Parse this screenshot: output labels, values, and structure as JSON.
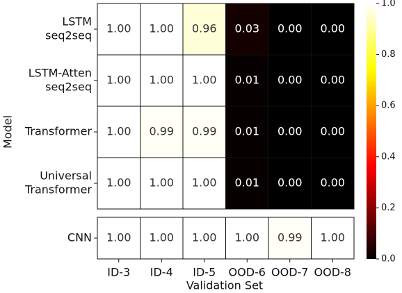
{
  "chart_data": {
    "type": "heatmap",
    "colormap": "hot",
    "xlabel": "Validation Set",
    "ylabel": "Model",
    "columns": [
      "ID-3",
      "ID-4",
      "ID-5",
      "OOD-6",
      "OOD-7",
      "OOD-8"
    ],
    "rows": [
      [
        "LSTM",
        "seq2seq"
      ],
      [
        "LSTM-Atten",
        "seq2seq"
      ],
      [
        "Transformer"
      ],
      [
        "Universal",
        "Transformer"
      ],
      [
        "CNN"
      ]
    ],
    "panels": [
      4,
      1
    ],
    "values": [
      [
        1.0,
        1.0,
        0.96,
        0.03,
        0.0,
        0.0
      ],
      [
        1.0,
        1.0,
        1.0,
        0.01,
        0.0,
        0.0
      ],
      [
        1.0,
        0.99,
        0.99,
        0.01,
        0.0,
        0.0
      ],
      [
        1.0,
        1.0,
        1.0,
        0.01,
        0.0,
        0.0
      ],
      [
        1.0,
        1.0,
        1.0,
        1.0,
        0.99,
        1.0
      ]
    ],
    "value_labels": [
      [
        "1.00",
        "1.00",
        "0.96",
        "0.03",
        "0.00",
        "0.00"
      ],
      [
        "1.00",
        "1.00",
        "1.00",
        "0.01",
        "0.00",
        "0.00"
      ],
      [
        "1.00",
        "0.99",
        "0.99",
        "0.01",
        "0.00",
        "0.00"
      ],
      [
        "1.00",
        "1.00",
        "1.00",
        "0.01",
        "0.00",
        "0.00"
      ],
      [
        "1.00",
        "1.00",
        "1.00",
        "1.00",
        "0.99",
        "1.00"
      ]
    ],
    "clim": [
      0,
      1
    ],
    "cticks": [
      {
        "value": 0,
        "label": "0.0"
      },
      0.2,
      0.4,
      0.6,
      0.8,
      {
        "value": 1,
        "label": "1.0"
      }
    ]
  }
}
